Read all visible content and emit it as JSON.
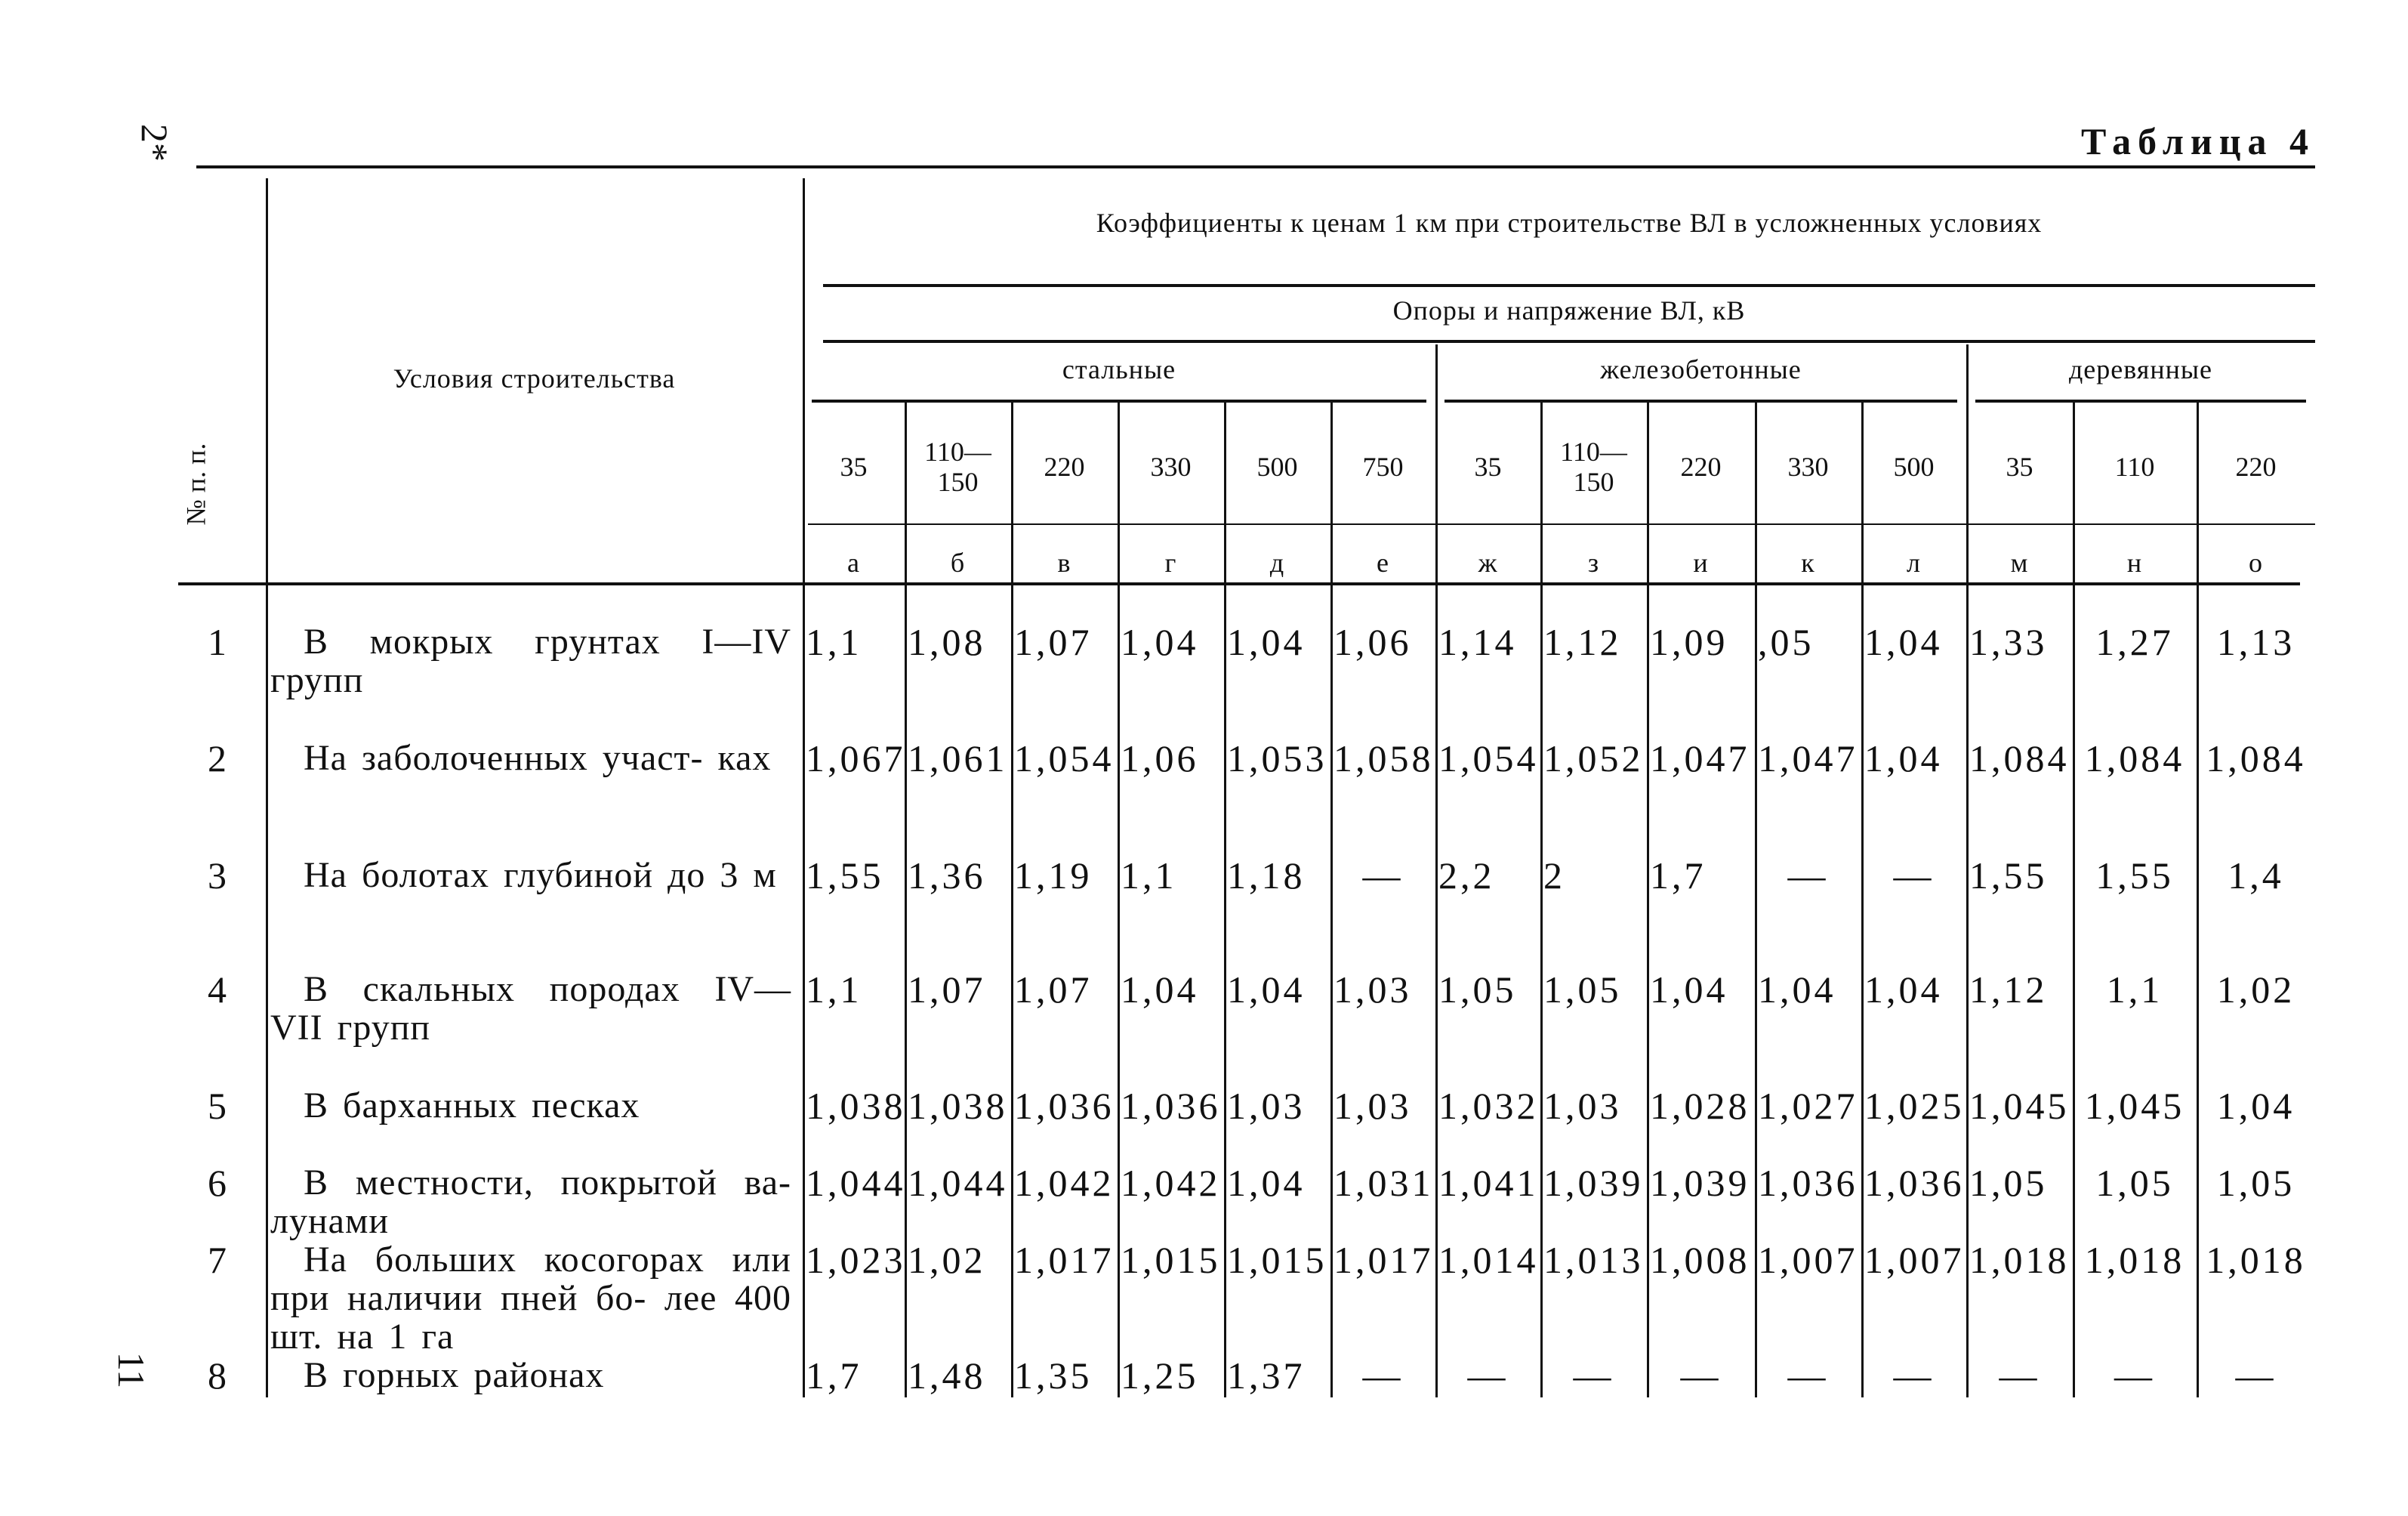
{
  "page_marks": {
    "signature_mark": "2*",
    "page_number": "11"
  },
  "table_title": "Таблица 4",
  "header": {
    "number_col": "№ п. п.",
    "conditions_col": "Условия строительства",
    "main_title": "Коэффициенты к ценам 1 км при строительстве ВЛ в усложненных условиях",
    "subtitle": "Опоры и напряжение ВЛ, кВ",
    "groups": [
      "стальные",
      "железобетонные",
      "деревянные"
    ],
    "voltages": [
      "35",
      "110—150",
      "220",
      "330",
      "500",
      "750",
      "35",
      "110—150",
      "220",
      "330",
      "500",
      "35",
      "110",
      "220"
    ],
    "letters": [
      "а",
      "б",
      "в",
      "г",
      "д",
      "е",
      "ж",
      "з",
      "и",
      "к",
      "л",
      "м",
      "н",
      "о"
    ]
  },
  "rows": [
    {
      "n": "1",
      "condition": "В мокрых грунтах I—IV групп",
      "values": [
        "1,1",
        "1,08",
        "1,07",
        "1,04",
        "1,04",
        "1,06",
        "1,14",
        "1,12",
        "1,09",
        ",05",
        "1,04",
        "1,33",
        "1,27",
        "1,13"
      ]
    },
    {
      "n": "2",
      "condition": "На заболоченных участ- ках",
      "values": [
        "1,067",
        "1,061",
        "1,054",
        "1,06",
        "1,053",
        "1,058",
        "1,054",
        "1,052",
        "1,047",
        "1,047",
        "1,04",
        "1,084",
        "1,084",
        "1,084"
      ]
    },
    {
      "n": "3",
      "condition": "На болотах глубиной до 3 м",
      "values": [
        "1,55",
        "1,36",
        "1,19",
        "1,1",
        "1,18",
        "—",
        "2,2",
        "2",
        "1,7",
        "—",
        "—",
        "1,55",
        "1,55",
        "1,4"
      ]
    },
    {
      "n": "4",
      "condition": "В скальных породах IV— VII групп",
      "values": [
        "1,1",
        "1,07",
        "1,07",
        "1,04",
        "1,04",
        "1,03",
        "1,05",
        "1,05",
        "1,04",
        "1,04",
        "1,04",
        "1,12",
        "1,1",
        "1,02"
      ]
    },
    {
      "n": "5",
      "condition": "В барханных песках",
      "values": [
        "1,038",
        "1,038",
        "1,036",
        "1,036",
        "1,03",
        "1,03",
        "1,032",
        "1,03",
        "1,028",
        "1,027",
        "1,025",
        "1,045",
        "1,045",
        "1,04"
      ]
    },
    {
      "n": "6",
      "condition": "В местности, покрытой ва- лунами",
      "values": [
        "1,044",
        "1,044",
        "1,042",
        "1,042",
        "1,04",
        "1,031",
        "1,041",
        "1,039",
        "1,039",
        "1,036",
        "1,036",
        "1,05",
        "1,05",
        "1,05"
      ]
    },
    {
      "n": "7",
      "condition": "На больших косогорах или при наличии пней бо- лее 400 шт. на 1 га",
      "values": [
        "1,023",
        "1,02",
        "1,017",
        "1,015",
        "1,015",
        "1,017",
        "1,014",
        "1,013",
        "1,008",
        "1,007",
        "1,007",
        "1,018",
        "1,018",
        "1,018"
      ]
    },
    {
      "n": "8",
      "condition": "В горных районах",
      "values": [
        "1,7",
        "1,48",
        "1,35",
        "1,25",
        "1,37",
        "—",
        "—",
        "—",
        "—",
        "—",
        "—",
        "—",
        "—",
        "—"
      ]
    }
  ]
}
